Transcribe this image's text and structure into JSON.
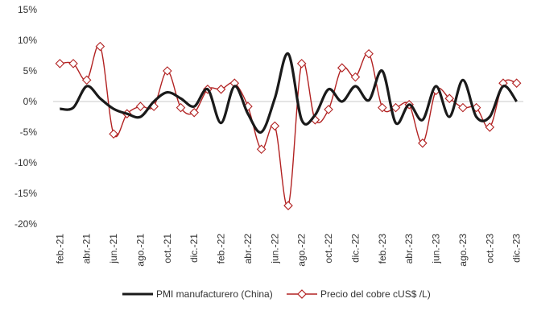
{
  "chart_data": {
    "type": "line",
    "title": "",
    "xlabel": "",
    "ylabel": "",
    "ylim": [
      -0.2,
      0.15
    ],
    "y_ticks": [
      "15%",
      "10%",
      "5%",
      "0%",
      "-5%",
      "-10%",
      "-15%",
      "-20%"
    ],
    "y_tick_values": [
      0.15,
      0.1,
      0.05,
      0.0,
      -0.05,
      -0.1,
      -0.15,
      -0.2
    ],
    "x": [
      "feb.-21",
      "mar.-21",
      "abr.-21",
      "may.-21",
      "jun.-21",
      "jul.-21",
      "ago.-21",
      "sept.-21",
      "oct.-21",
      "nov.-21",
      "dic.-21",
      "ene.-22",
      "feb.-22",
      "mar.-22",
      "abr.-22",
      "may.-22",
      "jun.-22",
      "jul.-22",
      "ago.-22",
      "sept.-22",
      "oct.-22",
      "nov.-22",
      "dic.-22",
      "ene.-23",
      "feb.-23",
      "mar.-23",
      "abr.-23",
      "may.-23",
      "jun.-23",
      "jul.-23",
      "ago.-23",
      "sept.-23",
      "oct.-23",
      "nov.-23",
      "dic.-23"
    ],
    "x_tick_labels": [
      "feb.-21",
      "abr.-21",
      "jun.-21",
      "ago.-21",
      "oct.-21",
      "dic.-21",
      "feb.-22",
      "abr.-22",
      "jun.-22",
      "ago.-22",
      "oct.-22",
      "dic.-22",
      "feb.-23",
      "abr.-23",
      "jun.-23",
      "ago.-23",
      "oct.-23",
      "dic.-23"
    ],
    "x_tick_indices": [
      0,
      2,
      4,
      6,
      8,
      10,
      12,
      14,
      16,
      18,
      20,
      22,
      24,
      26,
      28,
      30,
      32,
      34
    ],
    "grid": false,
    "legend_position": "bottom",
    "series": [
      {
        "name": "PMI manufacturero (China)",
        "color": "#1a1a1a",
        "marker": "none",
        "values": [
          -0.012,
          -0.01,
          0.025,
          0.005,
          -0.012,
          -0.02,
          -0.025,
          0.0,
          0.015,
          0.005,
          -0.008,
          0.02,
          -0.035,
          0.025,
          -0.02,
          -0.05,
          0.005,
          0.078,
          -0.03,
          -0.022,
          0.02,
          0.0,
          0.025,
          0.002,
          0.05,
          -0.035,
          -0.005,
          -0.03,
          0.025,
          -0.025,
          0.035,
          -0.025,
          -0.025,
          0.025,
          0.0
        ]
      },
      {
        "name": "Precio  del cobre cUS$ /L)",
        "color": "#b22222",
        "marker": "diamond",
        "values": [
          0.062,
          0.062,
          0.035,
          0.09,
          -0.053,
          -0.02,
          -0.008,
          -0.008,
          0.05,
          -0.01,
          -0.018,
          0.02,
          0.02,
          0.03,
          -0.008,
          -0.078,
          -0.04,
          -0.17,
          0.062,
          -0.03,
          -0.013,
          0.055,
          0.04,
          0.078,
          -0.01,
          -0.01,
          -0.005,
          -0.068,
          0.018,
          0.005,
          -0.01,
          -0.01,
          -0.042,
          0.03,
          0.03
        ]
      }
    ]
  }
}
